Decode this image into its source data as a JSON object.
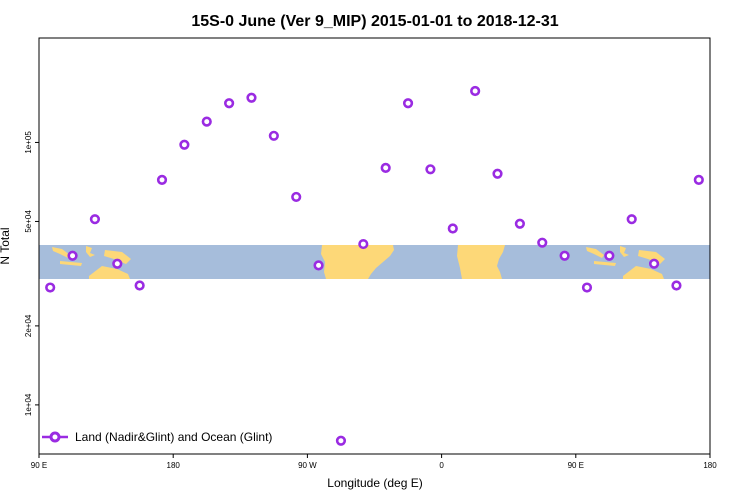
{
  "chart_data": {
    "type": "scatter",
    "title": "15S-0 June (Ver 9_MIP)   2015-01-01 to 2018-12-31",
    "xlabel": "Longitude (deg E)",
    "ylabel": "N Total",
    "y_scale": "log",
    "xlim": [
      90,
      540
    ],
    "ylim": [
      6500,
      250000
    ],
    "x_ticks": [
      {
        "value": 90,
        "label": "90 E"
      },
      {
        "value": 180,
        "label": "180"
      },
      {
        "value": 270,
        "label": "90 W"
      },
      {
        "value": 360,
        "label": "0"
      },
      {
        "value": 450,
        "label": "90 E"
      },
      {
        "value": 540,
        "label": "180"
      }
    ],
    "y_ticks": [
      {
        "value": 10000,
        "label": "1e+04"
      },
      {
        "value": 20000,
        "label": "2e+04"
      },
      {
        "value": 50000,
        "label": "5e+04"
      },
      {
        "value": 100000,
        "label": "1e+05"
      }
    ],
    "grid": false,
    "legend_position": "bottom-left",
    "background_map": {
      "lat_range": "15S-0",
      "ocean_color": "#a6bddb",
      "land_color": "#fdd878"
    },
    "series": [
      {
        "name": "Land (Nadir&Glint) and Ocean (Glint)",
        "color": "#9a2be2",
        "x": [
          97.5,
          112.5,
          127.5,
          142.5,
          157.5,
          172.5,
          187.5,
          202.5,
          217.5,
          232.5,
          247.5,
          262.5,
          277.5,
          292.5,
          307.5,
          322.5,
          337.5,
          352.5,
          367.5,
          382.5,
          397.5,
          412.5,
          427.5,
          442.5,
          457.5,
          472.5,
          487.5,
          502.5,
          517.5,
          532.5
        ],
        "y": [
          28000,
          37000,
          51000,
          34500,
          28500,
          72000,
          98000,
          120000,
          141000,
          148000,
          106000,
          62000,
          34000,
          7300,
          41000,
          80000,
          141000,
          79000,
          47000,
          157000,
          76000,
          49000,
          41500,
          37000,
          28000,
          37000,
          51000,
          34500,
          28500,
          72000
        ]
      }
    ]
  }
}
